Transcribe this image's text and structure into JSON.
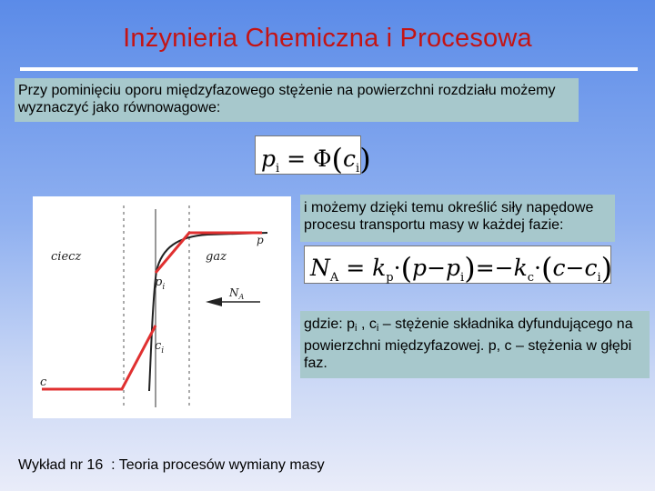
{
  "title": "Inżynieria Chemiczna i Procesowa",
  "intro_text": "Przy pominięciu oporu międzyfazowego stężenie na powierzchni rozdziału możemy wyznaczyć jako równowagowe:",
  "equation1": {
    "lhs": "p",
    "lhs_sub": "i",
    "eq": "=",
    "func": "Φ",
    "arg": "c",
    "arg_sub": "i"
  },
  "driving_text": "i możemy dzięki temu określić siły napędowe procesu transportu masy w każdej fazie:",
  "equation2": {
    "flux": "N",
    "flux_sub": "A",
    "k1": "k",
    "k1_sub": "p",
    "bulk1": "p",
    "minus": "−",
    "surf1": "p",
    "surf1_sub": "i",
    "mid": "=−",
    "k2": "k",
    "k2_sub": "c",
    "bulk2": "c",
    "surf2": "c",
    "surf2_sub": "i"
  },
  "where_text": {
    "prefix": "gdzie: p",
    "sub1": "i",
    "sep": " , c",
    "sub2": "i",
    "rest": " – stężenie składnika dyfundującego na powierzchni międzyfazowej. p, c – stężenia w głębi faz."
  },
  "diagram": {
    "label_liquid": "ciecz",
    "label_gas": "gaz",
    "label_p": "p",
    "label_pi": "p",
    "label_pi_sub": "i",
    "label_ci": "c",
    "label_ci_sub": "i",
    "label_c": "c",
    "label_na": "N",
    "label_na_sub": "A",
    "colors": {
      "profile": "#e03030",
      "curve": "#222222"
    }
  },
  "footer": "Wykład nr 16  : Teoria procesów wymiany masy"
}
